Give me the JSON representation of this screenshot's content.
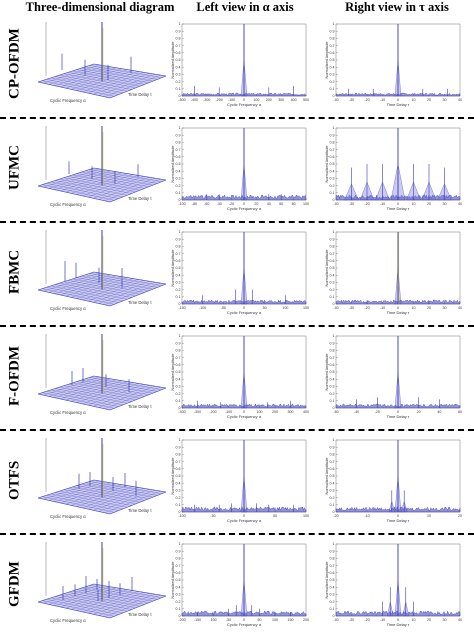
{
  "headers": {
    "col1": "Three-dimensional diagram",
    "col2": "Left view in α axis",
    "col3": "Right view in τ axis"
  },
  "axis_text": {
    "ylabel": "Normalized Amplitude",
    "cyclic": "Cyclic Frequency α",
    "delay": "Time Delay τ",
    "time_delay_label": "Time Delay",
    "cyclic_label": "Cyclic Frequency"
  },
  "colors": {
    "signal": "#3a3ab8",
    "surface": "#6a6ad8",
    "spike_accent": "#d4d400",
    "ink": "#000000"
  },
  "chart_data": [
    {
      "row": "CP-OFDM",
      "type": "line",
      "alpha_ticks": [
        "-500",
        "-400",
        "-300",
        "-200",
        "-100",
        "0",
        "100",
        "200",
        "300",
        "400",
        "500"
      ],
      "tau_ticks": [
        "-40",
        "-30",
        "-20",
        "-10",
        "0",
        "10",
        "20",
        "30",
        "40"
      ],
      "alpha_peaks": [
        {
          "x": 0,
          "y": 1.0
        },
        {
          "x": -400,
          "y": 0.14
        },
        {
          "x": -200,
          "y": 0.12
        },
        {
          "x": 200,
          "y": 0.12
        },
        {
          "x": 400,
          "y": 0.14
        }
      ],
      "tau_peaks": [
        {
          "x": 0,
          "y": 1.0
        },
        {
          "x": -32,
          "y": 0.1
        },
        {
          "x": -16,
          "y": 0.1
        },
        {
          "x": 16,
          "y": 0.1
        },
        {
          "x": 32,
          "y": 0.1
        }
      ],
      "floor": 0.03,
      "ylim": [
        0,
        1
      ]
    },
    {
      "row": "UFMC",
      "type": "line",
      "alpha_ticks": [
        "-100",
        "-80",
        "-60",
        "-40",
        "-20",
        "0",
        "20",
        "40",
        "60",
        "80",
        "100"
      ],
      "tau_ticks": [
        "-40",
        "-30",
        "-20",
        "-10",
        "0",
        "10",
        "20",
        "30",
        "40"
      ],
      "alpha_peaks": [
        {
          "x": 0,
          "y": 1.0
        },
        {
          "x": -60,
          "y": 0.08
        },
        {
          "x": -40,
          "y": 0.08
        },
        {
          "x": 40,
          "y": 0.08
        },
        {
          "x": 60,
          "y": 0.08
        }
      ],
      "tau_peaks": [
        {
          "x": 0,
          "y": 1.0
        },
        {
          "x": -30,
          "y": 0.45
        },
        {
          "x": -20,
          "y": 0.5
        },
        {
          "x": -10,
          "y": 0.5
        },
        {
          "x": 10,
          "y": 0.5
        },
        {
          "x": 20,
          "y": 0.5
        },
        {
          "x": 30,
          "y": 0.45
        }
      ],
      "floor": 0.05,
      "ylim": [
        0,
        1
      ]
    },
    {
      "row": "FBMC",
      "type": "line",
      "alpha_ticks": [
        "-150",
        "-100",
        "-50",
        "0",
        "50",
        "100",
        "150"
      ],
      "tau_ticks": [
        "-40",
        "-30",
        "-20",
        "-10",
        "0",
        "10",
        "20",
        "30",
        "40"
      ],
      "alpha_peaks": [
        {
          "x": 0,
          "y": 1.0
        },
        {
          "x": -100,
          "y": 0.12
        },
        {
          "x": 100,
          "y": 0.12
        },
        {
          "x": -20,
          "y": 0.2
        },
        {
          "x": 20,
          "y": 0.2
        }
      ],
      "tau_peaks": [
        {
          "x": 0,
          "y": 1.0
        },
        {
          "x": -20,
          "y": 0.05
        },
        {
          "x": 20,
          "y": 0.05
        }
      ],
      "floor": 0.04,
      "ylim": [
        0,
        1
      ]
    },
    {
      "row": "F-OFDM",
      "type": "line",
      "alpha_ticks": [
        "-400",
        "-300",
        "-200",
        "-100",
        "0",
        "100",
        "200",
        "300",
        "400"
      ],
      "tau_ticks": [
        "-60",
        "-40",
        "-20",
        "0",
        "20",
        "40",
        "60"
      ],
      "alpha_peaks": [
        {
          "x": 0,
          "y": 1.0
        },
        {
          "x": -300,
          "y": 0.1
        },
        {
          "x": -150,
          "y": 0.08
        },
        {
          "x": 150,
          "y": 0.08
        },
        {
          "x": 300,
          "y": 0.1
        }
      ],
      "tau_peaks": [
        {
          "x": 0,
          "y": 1.0
        },
        {
          "x": -40,
          "y": 0.12
        },
        {
          "x": -20,
          "y": 0.15
        },
        {
          "x": 20,
          "y": 0.15
        },
        {
          "x": 40,
          "y": 0.12
        }
      ],
      "floor": 0.04,
      "ylim": [
        0,
        1
      ]
    },
    {
      "row": "OTFS",
      "type": "line",
      "alpha_ticks": [
        "-100",
        "-50",
        "0",
        "50",
        "100"
      ],
      "tau_ticks": [
        "-20",
        "-10",
        "0",
        "10",
        "20"
      ],
      "alpha_peaks": [
        {
          "x": 0,
          "y": 1.0
        },
        {
          "x": -80,
          "y": 0.1
        },
        {
          "x": -40,
          "y": 0.1
        },
        {
          "x": -20,
          "y": 0.12
        },
        {
          "x": 20,
          "y": 0.12
        },
        {
          "x": 40,
          "y": 0.1
        },
        {
          "x": 80,
          "y": 0.1
        }
      ],
      "tau_peaks": [
        {
          "x": 0,
          "y": 1.0
        },
        {
          "x": -2,
          "y": 0.3
        },
        {
          "x": 2,
          "y": 0.3
        }
      ],
      "floor": 0.05,
      "ylim": [
        0,
        1
      ]
    },
    {
      "row": "GFDM",
      "type": "line",
      "alpha_ticks": [
        "-200",
        "-150",
        "-100",
        "-50",
        "0",
        "50",
        "100",
        "150",
        "200"
      ],
      "tau_ticks": [
        "-40",
        "-30",
        "-20",
        "-10",
        "0",
        "10",
        "20",
        "30",
        "40"
      ],
      "alpha_peaks": [
        {
          "x": 0,
          "y": 1.0
        },
        {
          "x": -150,
          "y": 0.05
        },
        {
          "x": -100,
          "y": 0.06
        },
        {
          "x": -50,
          "y": 0.1
        },
        {
          "x": -25,
          "y": 0.15
        },
        {
          "x": 25,
          "y": 0.15
        },
        {
          "x": 50,
          "y": 0.1
        },
        {
          "x": 100,
          "y": 0.06
        },
        {
          "x": 150,
          "y": 0.05
        }
      ],
      "tau_peaks": [
        {
          "x": 0,
          "y": 1.0
        },
        {
          "x": -5,
          "y": 0.4
        },
        {
          "x": 5,
          "y": 0.4
        },
        {
          "x": -10,
          "y": 0.2
        },
        {
          "x": 10,
          "y": 0.2
        }
      ],
      "floor": 0.05,
      "ylim": [
        0,
        1
      ]
    }
  ]
}
